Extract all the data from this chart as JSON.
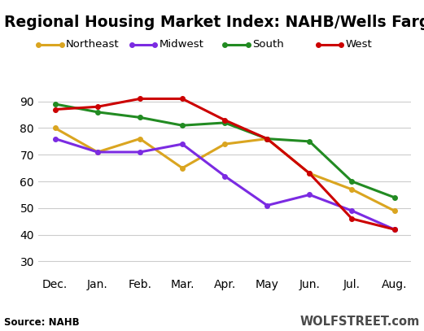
{
  "title": "Regional Housing Market Index: NAHB/Wells Fargo",
  "x_labels": [
    "Dec.",
    "Jan.",
    "Feb.",
    "Mar.",
    "Apr.",
    "May",
    "Jun.",
    "Jul.",
    "Aug."
  ],
  "series": {
    "Northeast": {
      "values": [
        80,
        71,
        76,
        65,
        74,
        76,
        63,
        57,
        49
      ],
      "color": "#DAA520",
      "marker": "o",
      "linewidth": 2.2
    },
    "Midwest": {
      "values": [
        76,
        71,
        71,
        74,
        62,
        51,
        55,
        49,
        42
      ],
      "color": "#7B2BE2",
      "marker": "o",
      "linewidth": 2.2
    },
    "South": {
      "values": [
        89,
        86,
        84,
        81,
        82,
        76,
        75,
        60,
        54
      ],
      "color": "#228B22",
      "marker": "o",
      "linewidth": 2.2
    },
    "West": {
      "values": [
        87,
        88,
        91,
        91,
        83,
        76,
        63,
        46,
        42
      ],
      "color": "#CC0000",
      "marker": "o",
      "linewidth": 2.2
    }
  },
  "legend_order": [
    "Northeast",
    "Midwest",
    "South",
    "West"
  ],
  "ylim": [
    25,
    97
  ],
  "yticks": [
    30,
    40,
    50,
    60,
    70,
    80,
    90
  ],
  "source_text": "Source: NAHB",
  "watermark": "WOLFSTREET.com",
  "background_color": "#ffffff",
  "grid_color": "#cccccc",
  "title_fontsize": 13.5,
  "tick_fontsize": 10
}
